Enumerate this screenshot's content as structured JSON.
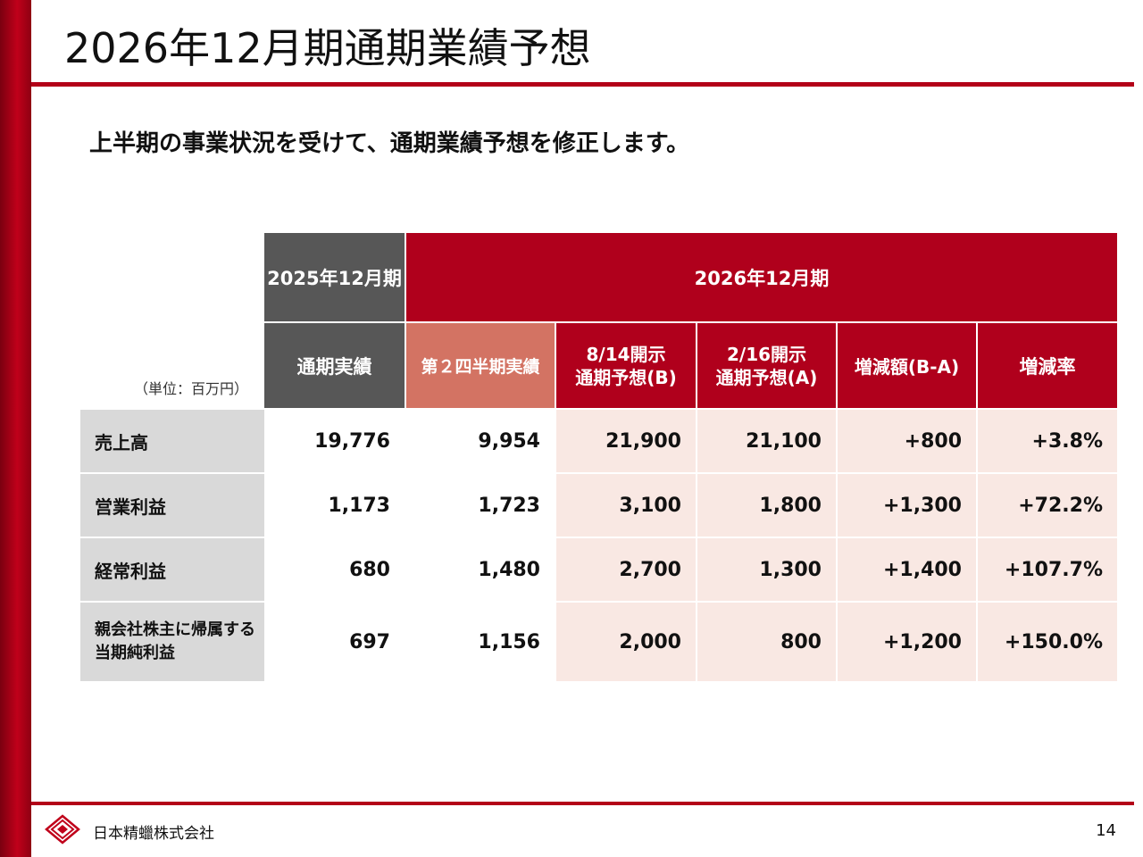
{
  "slide": {
    "title": "2026年12月期通期業績予想",
    "subtitle": "上半期の事業状況を受けて、通期業績予想を修正します。",
    "unit_label": "（単位：百万円）",
    "page_number": "14"
  },
  "table": {
    "group_headers": {
      "prev_year": "2025年12月期",
      "current_year": "2026年12月期"
    },
    "column_headers": {
      "full_year_actual": "通期実績",
      "q2_actual": "第２四半期実績",
      "forecast_b_line1": "8/14開示",
      "forecast_b_line2": "通期予想(B)",
      "forecast_a_line1": "2/16開示",
      "forecast_a_line2": "通期予想(A)",
      "change_amount": "増減額(B-A)",
      "change_rate": "増減率"
    },
    "rows": [
      {
        "label": "売上高",
        "label_line2": "",
        "full_year_actual": "19,776",
        "q2_actual": "9,954",
        "forecast_b": "21,900",
        "forecast_a": "21,100",
        "change_amount": "+800",
        "change_rate": "+3.8%"
      },
      {
        "label": "営業利益",
        "label_line2": "",
        "full_year_actual": "1,173",
        "q2_actual": "1,723",
        "forecast_b": "3,100",
        "forecast_a": "1,800",
        "change_amount": "+1,300",
        "change_rate": "+72.2%"
      },
      {
        "label": "経常利益",
        "label_line2": "",
        "full_year_actual": "680",
        "q2_actual": "1,480",
        "forecast_b": "2,700",
        "forecast_a": "1,300",
        "change_amount": "+1,400",
        "change_rate": "+107.7%"
      },
      {
        "label": "親会社株主に帰属する",
        "label_line2": "当期純利益",
        "full_year_actual": "697",
        "q2_actual": "1,156",
        "forecast_b": "2,000",
        "forecast_a": "800",
        "change_amount": "+1,200",
        "change_rate": "+150.0%"
      }
    ]
  },
  "footer": {
    "company_name": "日本精蠟株式会社",
    "logo_icon": "diamond-logo-icon"
  },
  "colors": {
    "accent_red": "#b0001c",
    "header_dark": "#575757",
    "header_salmon": "#d37363",
    "row_label_gray": "#d9d9d9",
    "forecast_pink": "#f9e8e3"
  }
}
